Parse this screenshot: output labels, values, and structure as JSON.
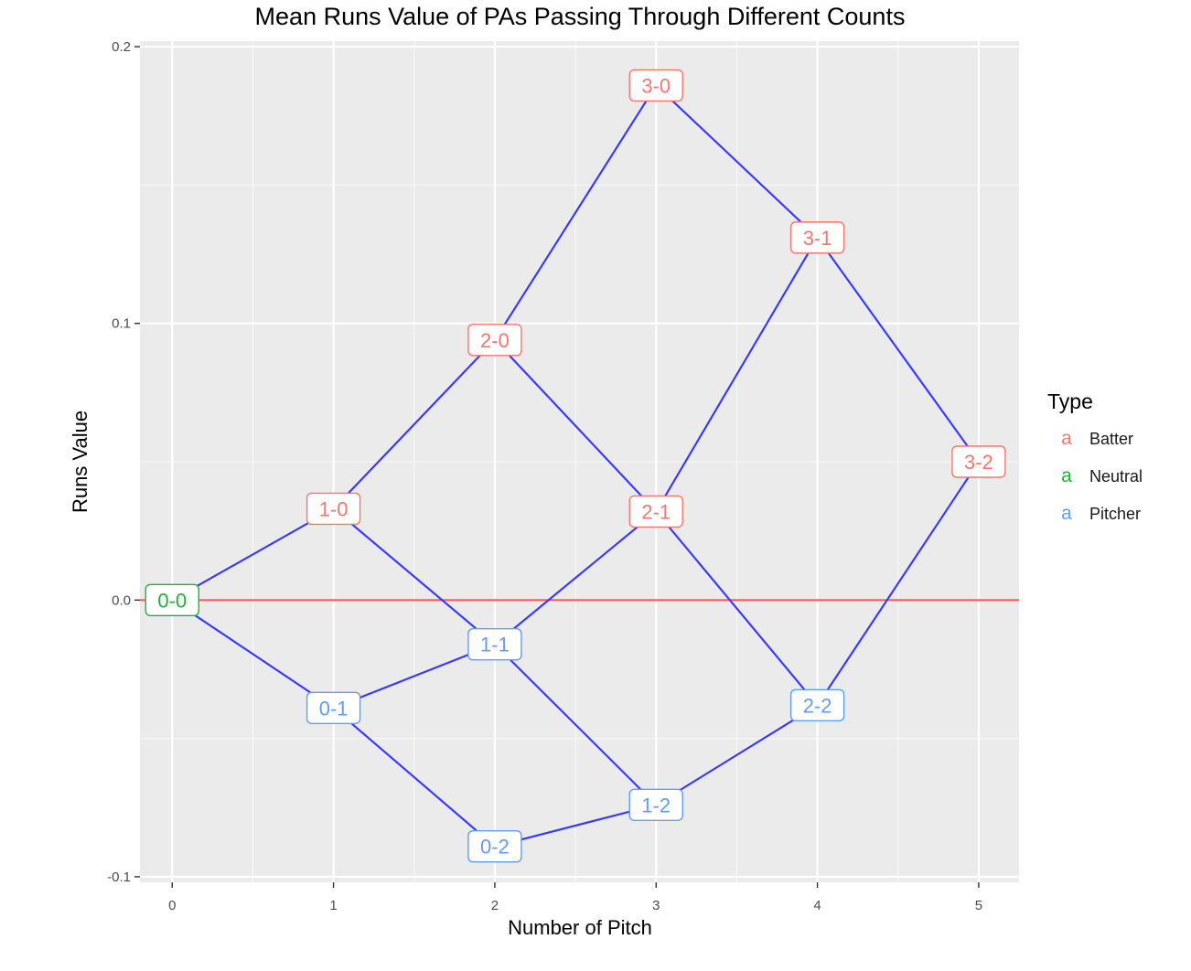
{
  "chart_data": {
    "type": "line",
    "title": "Mean Runs Value of PAs Passing Through Different Counts",
    "xlabel": "Number of Pitch",
    "ylabel": "Runs Value",
    "xlim": [
      -0.2,
      5.25
    ],
    "ylim": [
      -0.102,
      0.202
    ],
    "x_ticks": [
      "0",
      "1",
      "2",
      "3",
      "4",
      "5"
    ],
    "y_ticks": [
      "-0.1",
      "0.0",
      "0.1",
      "0.2"
    ],
    "y_tick_values": [
      -0.1,
      0.0,
      0.1,
      0.2
    ],
    "grid": true,
    "reference_line": {
      "y": 0.0,
      "color": "#ff5a5a"
    },
    "line_color": "#3a3aff",
    "legend": {
      "title": "Type",
      "placement": "right",
      "key_glyph": "a",
      "entries": [
        {
          "label": "Batter",
          "color": "#f8766d"
        },
        {
          "label": "Neutral",
          "color": "#21b13a"
        },
        {
          "label": "Pitcher",
          "color": "#619cff"
        }
      ]
    },
    "points": [
      {
        "label": "0-0",
        "x": 0,
        "y": 0.0,
        "type": "Neutral"
      },
      {
        "label": "1-0",
        "x": 1,
        "y": 0.033,
        "type": "Batter"
      },
      {
        "label": "0-1",
        "x": 1,
        "y": -0.039,
        "type": "Pitcher"
      },
      {
        "label": "2-0",
        "x": 2,
        "y": 0.094,
        "type": "Batter"
      },
      {
        "label": "1-1",
        "x": 2,
        "y": -0.016,
        "type": "Pitcher"
      },
      {
        "label": "0-2",
        "x": 2,
        "y": -0.089,
        "type": "Pitcher"
      },
      {
        "label": "3-0",
        "x": 3,
        "y": 0.186,
        "type": "Batter"
      },
      {
        "label": "2-1",
        "x": 3,
        "y": 0.032,
        "type": "Batter"
      },
      {
        "label": "1-2",
        "x": 3,
        "y": -0.074,
        "type": "Pitcher"
      },
      {
        "label": "3-1",
        "x": 4,
        "y": 0.131,
        "type": "Batter"
      },
      {
        "label": "2-2",
        "x": 4,
        "y": -0.038,
        "type": "Pitcher"
      },
      {
        "label": "3-2",
        "x": 5,
        "y": 0.05,
        "type": "Batter"
      }
    ],
    "edges": [
      [
        "0-0",
        "1-0"
      ],
      [
        "0-0",
        "0-1"
      ],
      [
        "1-0",
        "2-0"
      ],
      [
        "1-0",
        "1-1"
      ],
      [
        "0-1",
        "1-1"
      ],
      [
        "0-1",
        "0-2"
      ],
      [
        "2-0",
        "3-0"
      ],
      [
        "2-0",
        "2-1"
      ],
      [
        "1-1",
        "2-1"
      ],
      [
        "1-1",
        "1-2"
      ],
      [
        "0-2",
        "1-2"
      ],
      [
        "3-0",
        "3-1"
      ],
      [
        "2-1",
        "3-1"
      ],
      [
        "2-1",
        "2-2"
      ],
      [
        "1-2",
        "2-2"
      ],
      [
        "3-1",
        "3-2"
      ],
      [
        "2-2",
        "3-2"
      ]
    ]
  }
}
